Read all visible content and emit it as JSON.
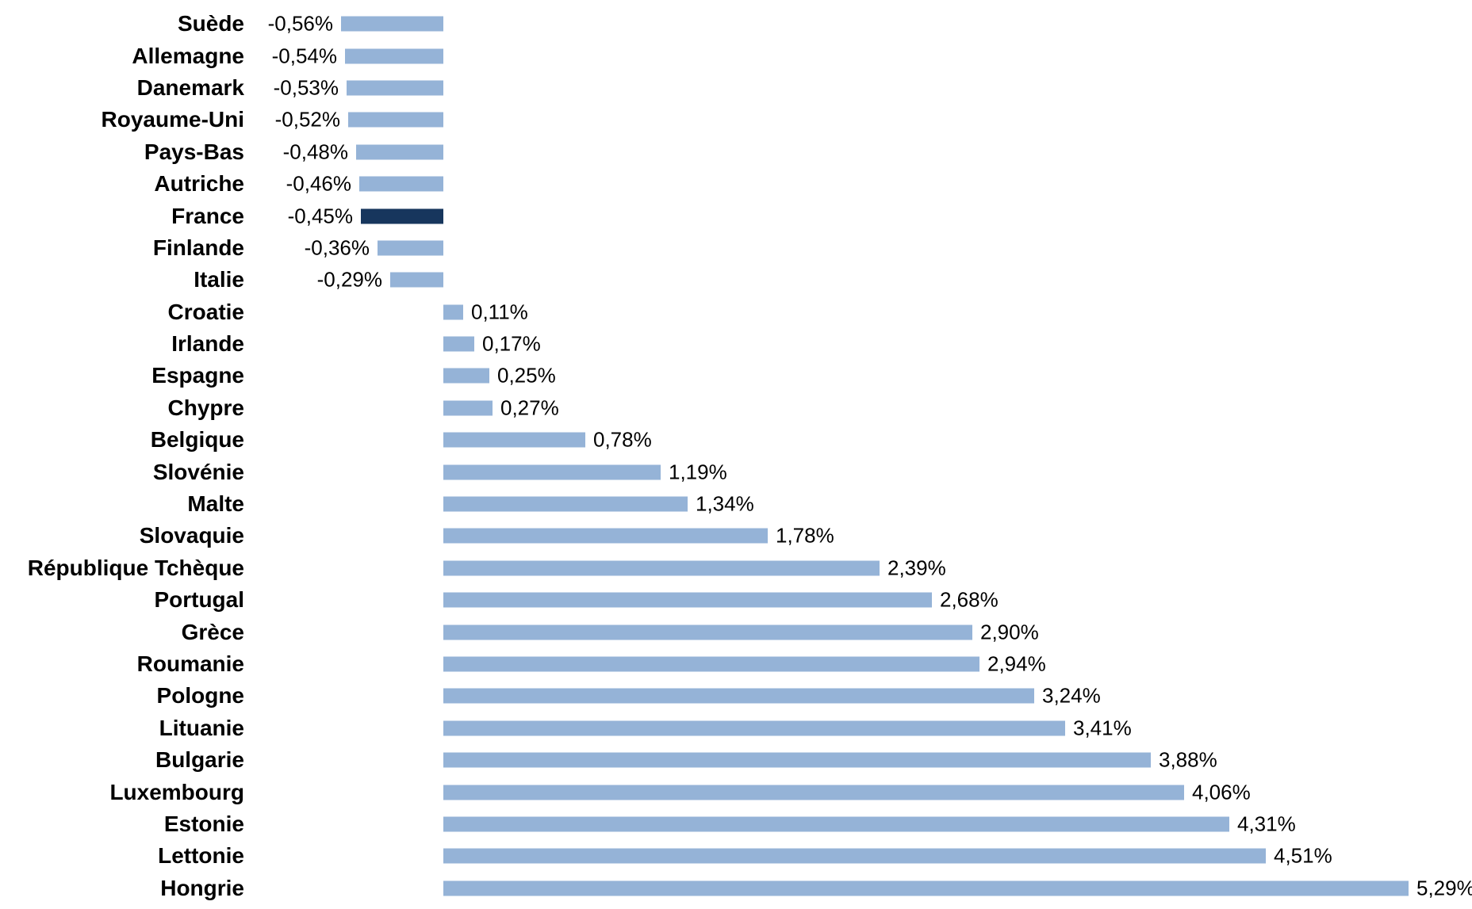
{
  "chart_data": {
    "type": "bar",
    "orientation": "horizontal",
    "title": "",
    "xlabel": "",
    "ylabel": "",
    "grid": false,
    "axis_lines": false,
    "legend": null,
    "xlim": [
      -0.56,
      5.29
    ],
    "bar_color": "#95B3D7",
    "highlight_color": "#17365D",
    "highlight_category": "France",
    "text_color": "#000000",
    "categories": [
      "Suède",
      "Allemagne",
      "Danemark",
      "Royaume-Uni",
      "Pays-Bas",
      "Autriche",
      "France",
      "Finlande",
      "Italie",
      "Croatie",
      "Irlande",
      "Espagne",
      "Chypre",
      "Belgique",
      "Slovénie",
      "Malte",
      "Slovaquie",
      "République Tchèque",
      "Portugal",
      "Grèce",
      "Roumanie",
      "Pologne",
      "Lituanie",
      "Bulgarie",
      "Luxembourg",
      "Estonie",
      "Lettonie",
      "Hongrie"
    ],
    "values": [
      -0.56,
      -0.54,
      -0.53,
      -0.52,
      -0.48,
      -0.46,
      -0.45,
      -0.36,
      -0.29,
      0.11,
      0.17,
      0.25,
      0.27,
      0.78,
      1.19,
      1.34,
      1.78,
      2.39,
      2.68,
      2.9,
      2.94,
      3.24,
      3.41,
      3.88,
      4.06,
      4.31,
      4.51,
      5.29
    ],
    "value_labels": [
      "-0,56%",
      "-0,54%",
      "-0,53%",
      "-0,52%",
      "-0,48%",
      "-0,46%",
      "-0,45%",
      "-0,36%",
      "-0,29%",
      "0,11%",
      "0,17%",
      "0,25%",
      "0,27%",
      "0,78%",
      "1,19%",
      "1,34%",
      "1,78%",
      "2,39%",
      "2,68%",
      "2,90%",
      "2,94%",
      "3,24%",
      "3,41%",
      "3,88%",
      "4,06%",
      "4,31%",
      "4,51%",
      "5,29%"
    ]
  },
  "layout_note": ""
}
